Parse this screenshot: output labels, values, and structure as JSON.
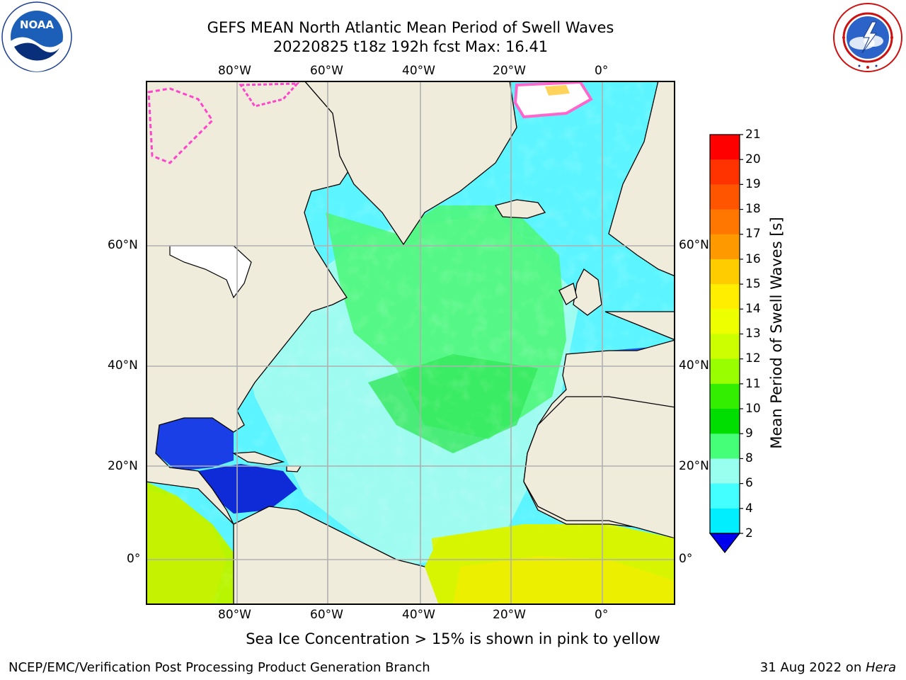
{
  "header": {
    "title_line1": "GEFS MEAN North Atlantic Mean Period of Swell Waves",
    "title_line2": "20220825 t18z 192h fcst   Max: 16.41"
  },
  "logos": {
    "left": {
      "name": "noaa-logo",
      "text": "NOAA",
      "ring_text": "NATIONAL OCEANIC AND ATMOSPHERIC ADMINISTRATION · U.S. DEPARTMENT OF COMMERCE"
    },
    "right": {
      "name": "nws-logo",
      "ring_text": "NATIONAL WEATHER SERVICE"
    }
  },
  "map": {
    "lon_labels": [
      "80°W",
      "60°W",
      "40°W",
      "20°W",
      "0°"
    ],
    "lat_labels": [
      "60°N",
      "40°N",
      "20°N",
      "0°"
    ],
    "grid": true,
    "colors": {
      "land": "#efecdc",
      "ice_white": "#ffffff",
      "ice_pink": "#ff66cc",
      "ice_yellow": "#ffd35c",
      "grid_line": "#b0b0b0"
    }
  },
  "colorbar": {
    "label": "Mean Period of Swell Waves [s]",
    "ticks": [
      "21",
      "20",
      "19",
      "18",
      "17",
      "16",
      "15",
      "14",
      "13",
      "12",
      "11",
      "10",
      "9",
      "8",
      "6",
      "4",
      "2"
    ],
    "colors": [
      "#ff0000",
      "#ff3300",
      "#ff5500",
      "#ff7700",
      "#ff9900",
      "#ffcc00",
      "#ffee00",
      "#eeff00",
      "#ccff00",
      "#99ff00",
      "#33ee00",
      "#00dd00",
      "#44ff77",
      "#99ffee",
      "#44ffff",
      "#00eeff",
      "#0077ff"
    ],
    "extend_color": "#0000ee"
  },
  "notes": {
    "sea_ice": "Sea Ice Concentration > 15% is shown in pink to yellow"
  },
  "footer": {
    "left": "NCEP/EMC/Verification Post Processing Product Generation Branch",
    "right_date": "31 Aug 2022 on ",
    "right_machine": "Hera"
  }
}
